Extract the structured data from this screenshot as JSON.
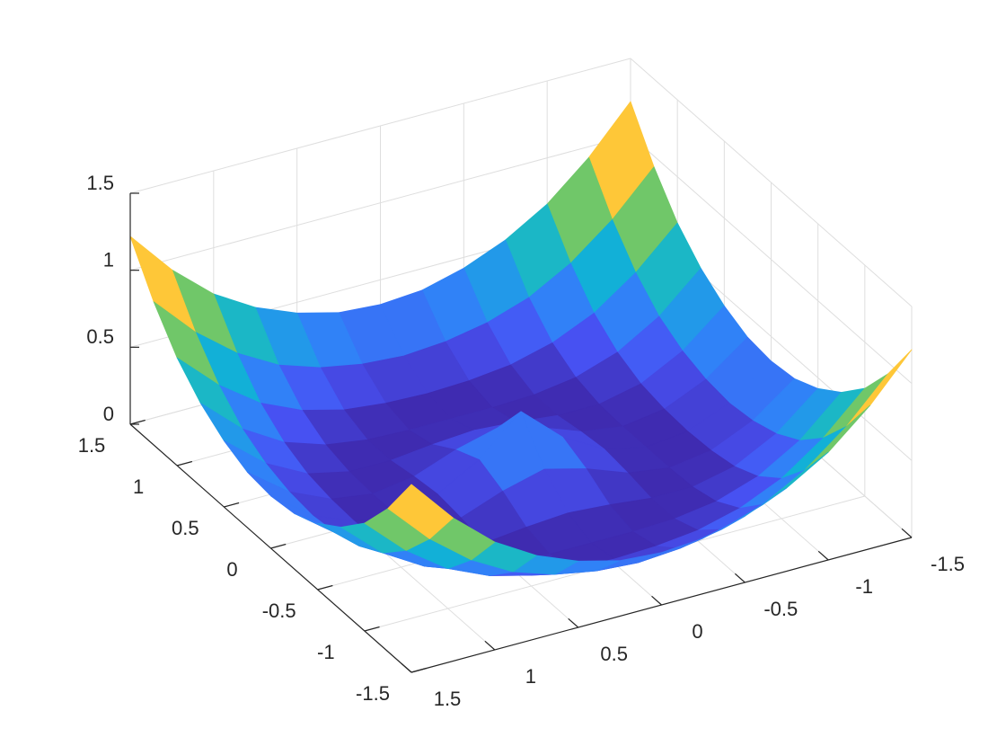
{
  "chart_data": {
    "type": "surface",
    "x": [
      -1.5,
      -1.25,
      -1,
      -0.75,
      -0.5,
      -0.25,
      0,
      0.25,
      0.5,
      0.75,
      1,
      1.25,
      1.5
    ],
    "y": [
      -1.5,
      -1.25,
      -1,
      -0.75,
      -0.5,
      -0.25,
      0,
      0.25,
      0.5,
      0.75,
      1,
      1.25,
      1.5
    ],
    "z": [
      [
        1.22,
        0.93,
        0.7,
        0.54,
        0.43,
        0.36,
        0.34,
        0.36,
        0.43,
        0.54,
        0.7,
        0.93,
        1.22
      ],
      [
        0.93,
        0.66,
        0.45,
        0.3,
        0.21,
        0.16,
        0.14,
        0.16,
        0.21,
        0.3,
        0.45,
        0.66,
        0.93
      ],
      [
        0.7,
        0.45,
        0.26,
        0.14,
        0.07,
        0.04,
        0.03,
        0.04,
        0.07,
        0.14,
        0.26,
        0.45,
        0.7
      ],
      [
        0.54,
        0.3,
        0.14,
        0.05,
        0.01,
        0,
        0,
        0,
        0.01,
        0.05,
        0.14,
        0.3,
        0.54
      ],
      [
        0.43,
        0.21,
        0.07,
        0.01,
        0.01,
        0.04,
        0.06,
        0.04,
        0.01,
        0.01,
        0.07,
        0.21,
        0.43
      ],
      [
        0.36,
        0.16,
        0.04,
        0,
        0.04,
        0.14,
        0.21,
        0.14,
        0.04,
        0,
        0.04,
        0.16,
        0.36
      ],
      [
        0.34,
        0.14,
        0.03,
        0,
        0.06,
        0.21,
        0.45,
        0.21,
        0.06,
        0,
        0.03,
        0.14,
        0.34
      ],
      [
        0.36,
        0.16,
        0.04,
        0,
        0.04,
        0.14,
        0.21,
        0.14,
        0.04,
        0,
        0.04,
        0.16,
        0.36
      ],
      [
        0.43,
        0.21,
        0.07,
        0.01,
        0.01,
        0.04,
        0.06,
        0.04,
        0.01,
        0.01,
        0.07,
        0.21,
        0.43
      ],
      [
        0.54,
        0.3,
        0.14,
        0.05,
        0.01,
        0,
        0,
        0,
        0.01,
        0.05,
        0.14,
        0.3,
        0.54
      ],
      [
        0.7,
        0.45,
        0.26,
        0.14,
        0.07,
        0.04,
        0.03,
        0.04,
        0.07,
        0.14,
        0.26,
        0.45,
        0.7
      ],
      [
        0.93,
        0.66,
        0.45,
        0.3,
        0.21,
        0.16,
        0.14,
        0.16,
        0.21,
        0.3,
        0.45,
        0.66,
        0.93
      ],
      [
        1.22,
        0.93,
        0.7,
        0.54,
        0.43,
        0.36,
        0.34,
        0.36,
        0.43,
        0.54,
        0.7,
        0.93,
        1.22
      ]
    ],
    "xlim": [
      -1.5,
      1.5
    ],
    "ylim": [
      -1.5,
      1.5
    ],
    "zlim": [
      0,
      1.5
    ],
    "xticks": [
      -1.5,
      -1,
      -0.5,
      0,
      0.5,
      1,
      1.5
    ],
    "yticks": [
      -1.5,
      -1,
      -0.5,
      0,
      0.5,
      1,
      1.5
    ],
    "zticks": [
      0,
      0.5,
      1,
      1.5
    ],
    "grid": true,
    "colormap": "parula"
  }
}
